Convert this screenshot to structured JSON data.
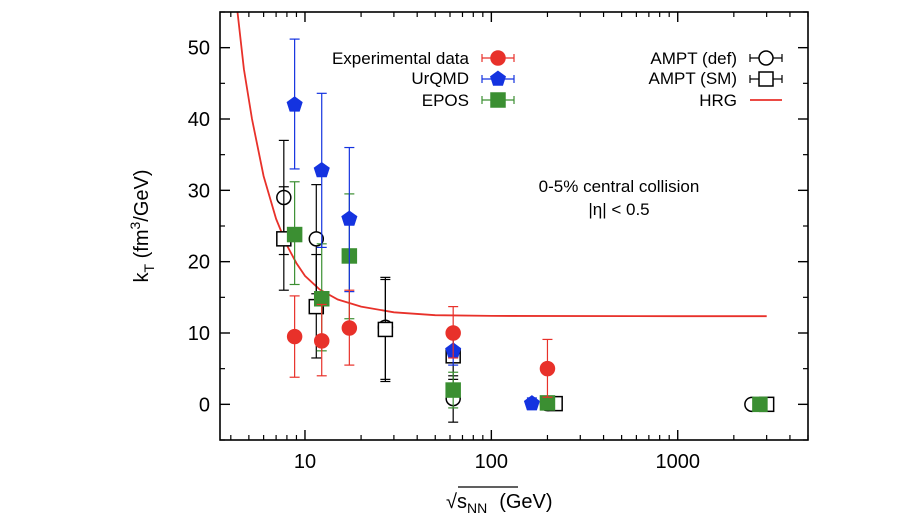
{
  "chart_data": {
    "type": "scatter",
    "title": "",
    "xlabel_root": "√",
    "xlabel_s": "s",
    "xlabel_sub": "NN",
    "xlabel_unit": "(GeV)",
    "ylabel_main": "k",
    "ylabel_sub": "T",
    "ylabel_unit_pre": " (fm",
    "ylabel_unit_sup": "3",
    "ylabel_unit_post": "/GeV)",
    "xscale": "log",
    "xlim": [
      3.5,
      5000
    ],
    "ylim": [
      -5,
      55
    ],
    "xticks": [
      10,
      100,
      1000
    ],
    "xtick_labels": [
      "10",
      "100",
      "1000"
    ],
    "yticks": [
      0,
      10,
      20,
      30,
      40,
      50
    ],
    "ytick_labels": [
      "0",
      "10",
      "20",
      "30",
      "40",
      "50"
    ],
    "grid": false,
    "legend_placement": "top",
    "annotation_line1": "0-5% central collision",
    "annotation_line2": "|η| < 0.5",
    "series": [
      {
        "name": "Experimental data",
        "marker": "circle",
        "filled": true,
        "color": "#e8312a",
        "points": [
          {
            "x": 8.8,
            "y": 9.5,
            "lo": 3.8,
            "hi": 15.2
          },
          {
            "x": 12.3,
            "y": 8.9,
            "lo": 4.0,
            "hi": 14.0
          },
          {
            "x": 17.3,
            "y": 10.7,
            "lo": 5.5,
            "hi": 16.0
          },
          {
            "x": 62.4,
            "y": 10.0,
            "lo": 6.5,
            "hi": 13.7
          },
          {
            "x": 200,
            "y": 5.0,
            "lo": 1.0,
            "hi": 9.1
          }
        ]
      },
      {
        "name": "UrQMD",
        "marker": "pentagon",
        "filled": true,
        "color": "#1433e0",
        "points": [
          {
            "x": 8.8,
            "y": 42.0,
            "lo": 33.0,
            "hi": 51.2
          },
          {
            "x": 12.3,
            "y": 32.8,
            "lo": 22.0,
            "hi": 43.6
          },
          {
            "x": 17.3,
            "y": 26.0,
            "lo": 15.8,
            "hi": 36.0
          },
          {
            "x": 62.4,
            "y": 7.5,
            "lo": 5.5,
            "hi": 9.5
          },
          {
            "x": 165,
            "y": 0.1,
            "lo": -0.7,
            "hi": 0.9
          }
        ]
      },
      {
        "name": "EPOS",
        "marker": "square",
        "filled": true,
        "color": "#3b8f32",
        "points": [
          {
            "x": 8.8,
            "y": 23.8,
            "lo": 16.8,
            "hi": 31.2
          },
          {
            "x": 12.3,
            "y": 14.8,
            "lo": 7.5,
            "hi": 22.5
          },
          {
            "x": 17.3,
            "y": 20.8,
            "lo": 12.0,
            "hi": 29.5
          },
          {
            "x": 62.4,
            "y": 2.0,
            "lo": -0.5,
            "hi": 4.5
          },
          {
            "x": 200,
            "y": 0.2,
            "lo": -0.5,
            "hi": 0.9
          },
          {
            "x": 2760,
            "y": 0.0,
            "lo": -0.5,
            "hi": 0.5
          }
        ]
      },
      {
        "name": "AMPT (def)",
        "marker": "circle",
        "filled": false,
        "color": "#000000",
        "points": [
          {
            "x": 7.7,
            "y": 29.0,
            "lo": 21.0,
            "hi": 37.0
          },
          {
            "x": 11.5,
            "y": 23.2,
            "lo": 15.5,
            "hi": 30.8
          },
          {
            "x": 27,
            "y": 10.8,
            "lo": 3.5,
            "hi": 17.8
          },
          {
            "x": 62.4,
            "y": 0.8,
            "lo": -2.5,
            "hi": 4.0
          },
          {
            "x": 200,
            "y": 0.1,
            "lo": -0.6,
            "hi": 0.8
          },
          {
            "x": 2500,
            "y": 0.0,
            "lo": -0.6,
            "hi": 0.6
          }
        ]
      },
      {
        "name": "AMPT (SM)",
        "marker": "square",
        "filled": false,
        "color": "#000000",
        "points": [
          {
            "x": 7.7,
            "y": 23.2,
            "lo": 16.0,
            "hi": 30.5
          },
          {
            "x": 11.5,
            "y": 13.7,
            "lo": 6.5,
            "hi": 21.0
          },
          {
            "x": 27,
            "y": 10.5,
            "lo": 3.2,
            "hi": 17.5
          },
          {
            "x": 62.4,
            "y": 6.8,
            "lo": 3.5,
            "hi": 10.0
          },
          {
            "x": 220,
            "y": 0.1,
            "lo": -0.6,
            "hi": 0.8
          },
          {
            "x": 3000,
            "y": 0.0,
            "lo": -0.6,
            "hi": 0.6
          }
        ]
      },
      {
        "name": "HRG",
        "marker": "line",
        "filled": false,
        "color": "#e8312a",
        "curve": [
          {
            "x": 4.3,
            "y": 56
          },
          {
            "x": 4.7,
            "y": 47
          },
          {
            "x": 5.2,
            "y": 40
          },
          {
            "x": 6.0,
            "y": 32
          },
          {
            "x": 7.0,
            "y": 26
          },
          {
            "x": 8.0,
            "y": 22.3
          },
          {
            "x": 9.0,
            "y": 19.8
          },
          {
            "x": 10.0,
            "y": 18.0
          },
          {
            "x": 12.0,
            "y": 16.1
          },
          {
            "x": 15.0,
            "y": 14.7
          },
          {
            "x": 20.0,
            "y": 13.7
          },
          {
            "x": 30.0,
            "y": 12.9
          },
          {
            "x": 50.0,
            "y": 12.5
          },
          {
            "x": 100.0,
            "y": 12.4
          },
          {
            "x": 1000.0,
            "y": 12.35
          },
          {
            "x": 3000.0,
            "y": 12.35
          }
        ]
      }
    ]
  }
}
